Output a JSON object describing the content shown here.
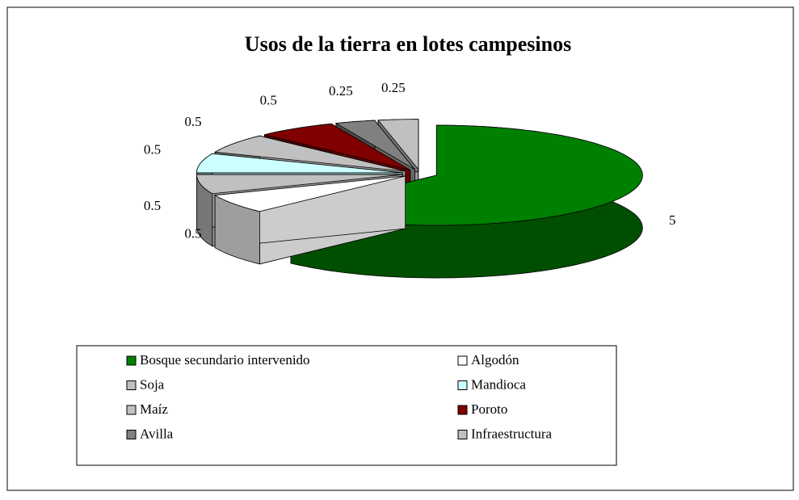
{
  "chart_data": {
    "type": "pie3d",
    "title": "Usos de la tierra en lotes campesinos",
    "categories": [
      "Bosque secundario intervenido",
      "Algodón",
      "Soja",
      "Mandioca",
      "Maíz",
      "Poroto",
      "Avilla",
      "Infraestructura"
    ],
    "values": [
      5,
      0.5,
      0.5,
      0.5,
      0.5,
      0.5,
      0.25,
      0.25
    ],
    "colors": [
      "#008000",
      "#ffffff",
      "#c0c0c0",
      "#ccffff",
      "#c0c0c0",
      "#800000",
      "#808080",
      "#c0c0c0"
    ],
    "legend": "bottom"
  }
}
